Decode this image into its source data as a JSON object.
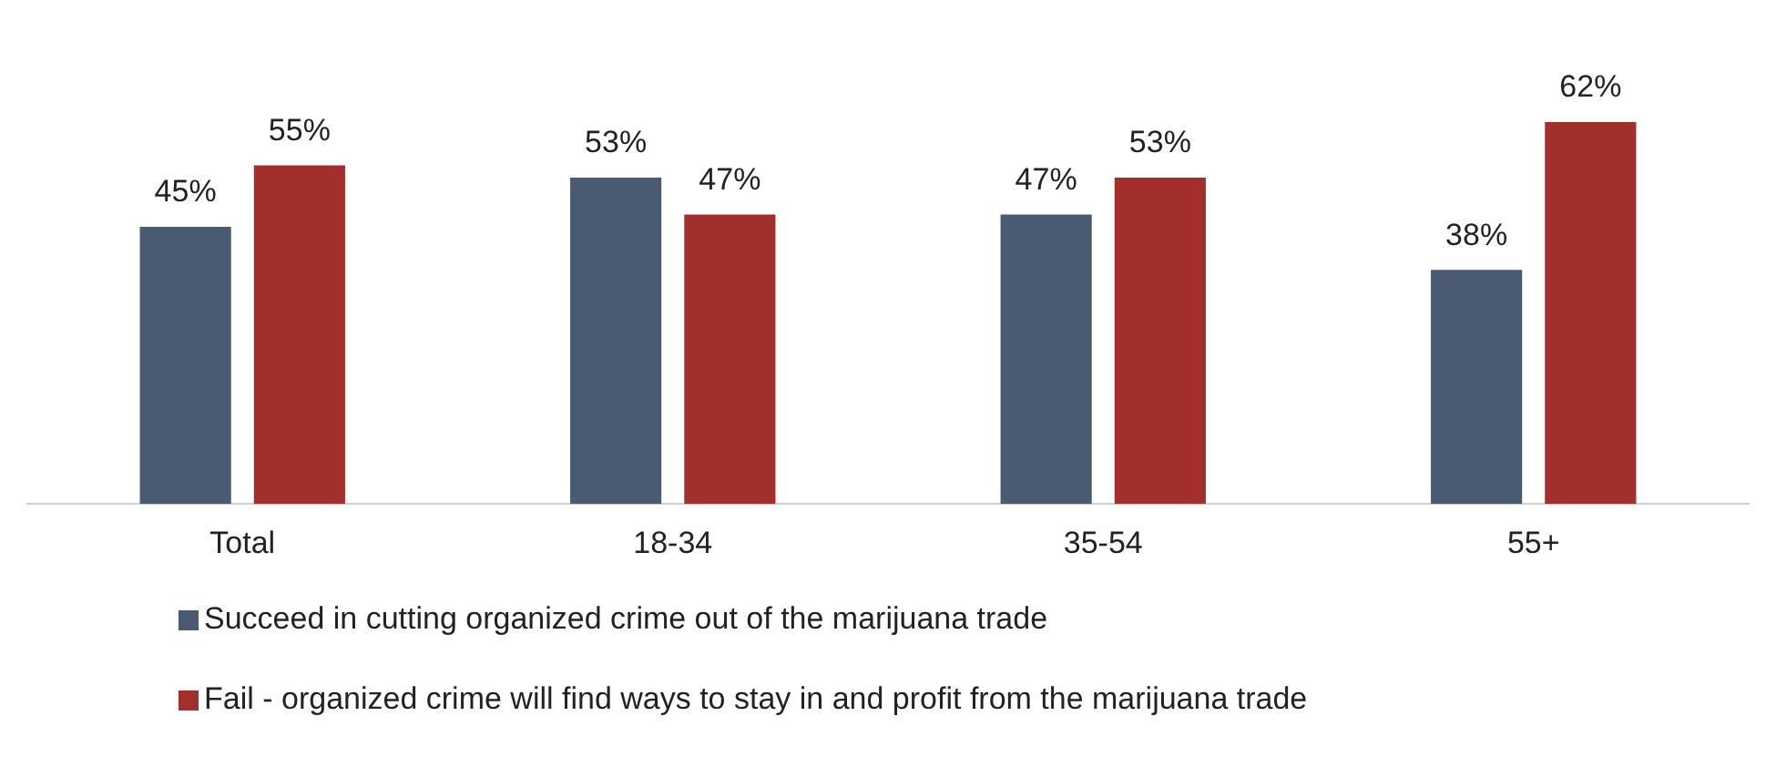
{
  "chart_data": {
    "type": "bar",
    "categories": [
      "Total",
      "18-34",
      "35-54",
      "55+"
    ],
    "series": [
      {
        "name": "Succeed in cutting organized crime out of the marijuana trade",
        "color": "#4a5a72",
        "values": [
          45,
          53,
          47,
          38
        ],
        "value_labels": [
          "45%",
          "53%",
          "47%",
          "38%"
        ]
      },
      {
        "name": "Fail - organized crime will find ways to stay in and profit from the marijuana trade",
        "color": "#a22f2b",
        "values": [
          55,
          47,
          53,
          62
        ],
        "value_labels": [
          "55%",
          "47%",
          "53%",
          "62%"
        ]
      }
    ],
    "legend": "bottom left",
    "grid": false,
    "tick_labels": "x"
  }
}
